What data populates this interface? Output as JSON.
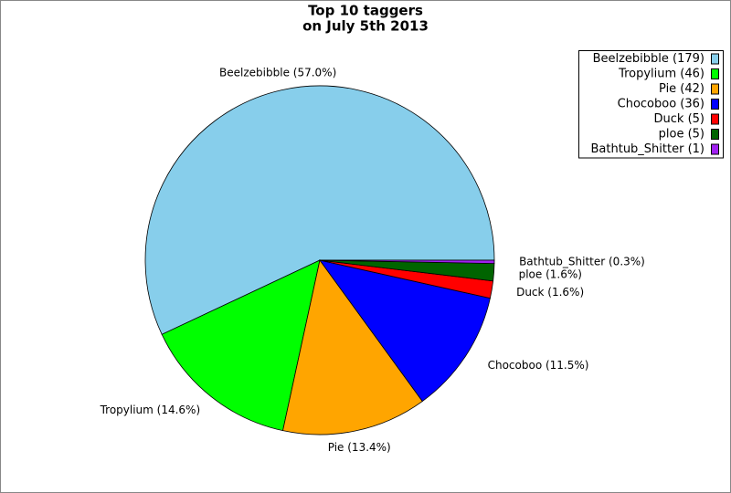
{
  "chart_data": {
    "type": "pie",
    "title": "Top 10 taggers",
    "subtitle": "on July 5th 2013",
    "categories": [
      "Beelzebibble (179)",
      "Tropylium (46)",
      "Pie (42)",
      "Chocoboo (36)",
      "Duck (5)",
      "ploe (5)",
      "Bathtub_Shitter (1)"
    ],
    "values": [
      57.0,
      14.6,
      13.4,
      11.5,
      1.6,
      1.6,
      0.3
    ],
    "value_labels": [
      "Beelzebibble (57.0%)",
      "Tropylium (14.6%)",
      "Pie (13.4%)",
      "Chocoboo (11.5%)",
      "Duck (1.6%)",
      "ploe (1.6%)",
      "Bathtub_Shitter (0.3%)"
    ],
    "colors": [
      "#87ceeb",
      "#00ff00",
      "#ffa500",
      "#0000ff",
      "#ff0000",
      "#006400",
      "#a020f0"
    ],
    "legend": "upper right"
  }
}
